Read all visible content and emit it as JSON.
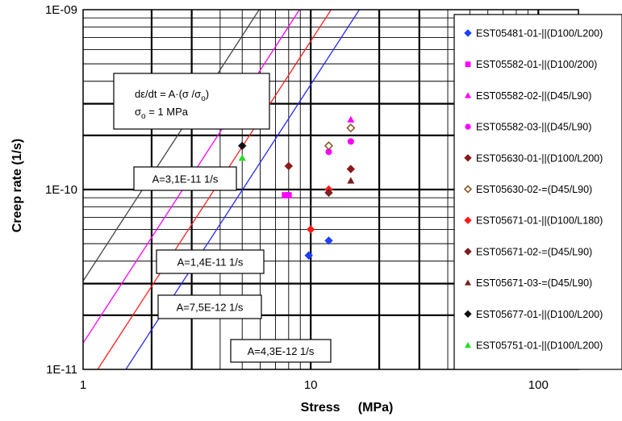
{
  "chart_data": {
    "type": "scatter",
    "x_scale": "log",
    "y_scale": "log",
    "xlim": [
      1,
      150
    ],
    "ylim": [
      1e-11,
      1e-09
    ],
    "xlabel": "Stress     (MPa)",
    "ylabel": "Creep rate (1/s)",
    "x_tick_labels": [
      {
        "value": 1,
        "label": "1"
      },
      {
        "value": 10,
        "label": "10"
      },
      {
        "value": 100,
        "label": "100"
      }
    ],
    "y_tick_labels": [
      {
        "value": 1e-09,
        "label": "1E-09"
      },
      {
        "value": 1e-10,
        "label": "1E-10"
      },
      {
        "value": 1e-11,
        "label": "1E-11"
      }
    ],
    "grid": true,
    "legend_position": "right",
    "formula_box": {
      "line1": "dε/dt = A·(σ /σ",
      "line1_sub": "o",
      "line1_end": ")",
      "line2_prefix": "σ",
      "line2_sub": "o",
      "line2_rest": " = 1 MPa"
    },
    "fit_lines": [
      {
        "label": "A=3,1E-11 1/s",
        "A": 3.1e-11,
        "exponent": 1.95,
        "color": "#444444"
      },
      {
        "label": "A=1,4E-11 1/s",
        "A": 1.4e-11,
        "exponent": 1.95,
        "color": "#ff00ff"
      },
      {
        "label": "A=7,5E-12 1/s",
        "A": 7.5e-12,
        "exponent": 1.95,
        "color": "#ff2020"
      },
      {
        "label": "A=4,3E-12 1/s",
        "A": 4.3e-12,
        "exponent": 1.95,
        "color": "#2828ff"
      }
    ],
    "series": [
      {
        "name": "EST05481-01-||(D100/L200)",
        "marker": "diamond",
        "color": "#1f3fff",
        "points": [
          [
            9.8,
            4.3e-11
          ],
          [
            12.0,
            5.2e-11
          ]
        ]
      },
      {
        "name": "EST05582-01-||(D100/200)",
        "marker": "square",
        "color": "#ff00ff",
        "points": [
          [
            7.7,
            9.3e-11
          ],
          [
            8.0,
            9.3e-11
          ]
        ]
      },
      {
        "name": "EST05582-02-||(D45/L90)",
        "marker": "triangle",
        "color": "#ff00ff",
        "points": [
          [
            15.0,
            2.45e-10
          ]
        ]
      },
      {
        "name": "EST05582-03-||(D45/L90)",
        "marker": "circle",
        "color": "#ff00ff",
        "points": [
          [
            12.0,
            1.62e-10
          ],
          [
            15.0,
            1.85e-10
          ]
        ]
      },
      {
        "name": "EST05630-01-||(D100/L200)",
        "marker": "diamond",
        "color": "#8b1a1a",
        "points": [
          [
            8.0,
            1.35e-10
          ],
          [
            15.0,
            1.3e-10
          ]
        ]
      },
      {
        "name": "EST05630-02-=(D45/L90)",
        "marker": "diamond-open",
        "color": "#8b5a2b",
        "points": [
          [
            12.0,
            1.75e-10
          ],
          [
            15.0,
            2.2e-10
          ]
        ]
      },
      {
        "name": "EST05671-01-||(D100/L180)",
        "marker": "diamond",
        "color": "#ff1a1a",
        "points": [
          [
            10.0,
            6e-11
          ],
          [
            12.0,
            1e-10
          ]
        ]
      },
      {
        "name": "EST05671-02-=(D45/L90)",
        "marker": "diamond",
        "color": "#7a1f1f",
        "points": [
          [
            12.0,
            9.6e-11
          ]
        ]
      },
      {
        "name": "EST05671-03-=(D45/L90)",
        "marker": "triangle",
        "color": "#7a1f1f",
        "points": [
          [
            15.0,
            1.12e-10
          ]
        ]
      },
      {
        "name": "EST05677-01-||(D100/L200)",
        "marker": "diamond",
        "color": "#111111",
        "points": [
          [
            5.0,
            1.75e-10
          ]
        ]
      },
      {
        "name": "EST05751-01-||(D100/L200)",
        "marker": "triangle",
        "color": "#22dd22",
        "points": [
          [
            5.0,
            1.5e-10
          ]
        ]
      }
    ]
  }
}
